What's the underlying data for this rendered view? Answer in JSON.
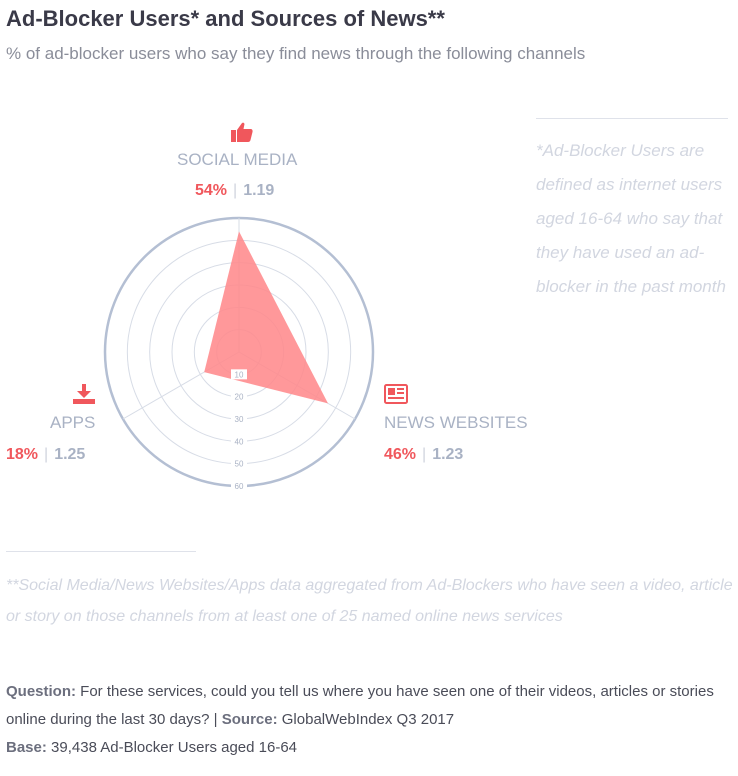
{
  "title": "Ad-Blocker Users* and Sources of News**",
  "subtitle": "% of ad-blocker users who say they find news through the following channels",
  "colors": {
    "fill": "#ff8a8c",
    "accent": "#f0575c",
    "ring": "#b4bfd3",
    "grid": "#d7dce6",
    "muted": "#a9b2c4"
  },
  "categories": [
    {
      "label": "SOCIAL MEDIA",
      "pct": "54%",
      "index": "1.19",
      "icon": "thumbs-up-icon"
    },
    {
      "label": "NEWS WEBSITES",
      "pct": "46%",
      "index": "1.23",
      "icon": "newspaper-icon"
    },
    {
      "label": "APPS",
      "pct": "18%",
      "index": "1.25",
      "icon": "download-icon"
    }
  ],
  "chart_data": {
    "type": "radar",
    "categories": [
      "SOCIAL MEDIA",
      "NEWS WEBSITES",
      "APPS"
    ],
    "values": [
      54,
      46,
      18
    ],
    "index_values": [
      1.19,
      1.23,
      1.25
    ],
    "rlim": [
      0,
      60
    ],
    "ticks": [
      "10",
      "20",
      "30",
      "40",
      "50",
      "60"
    ],
    "grid": true
  },
  "notes": {
    "definition": "*Ad-Blocker Users are defined as internet users aged 16-64 who say that they have used an ad-blocker in the past month",
    "aggregation": "**Social Media/News Websites/Apps data aggregated from Ad-Blockers who have seen a video, article or story on those channels from at least one of 25 named online news services"
  },
  "footer": {
    "question_label": "Question:",
    "question_text": "For these services, could you tell us where you have seen one of their videos, articles or stories online during the last 30 days?",
    "separator": "|",
    "source_label": "Source:",
    "source_text": "GlobalWebIndex Q3 2017",
    "base_label": "Base:",
    "base_text": "39,438 Ad-Blocker Users aged 16-64"
  }
}
